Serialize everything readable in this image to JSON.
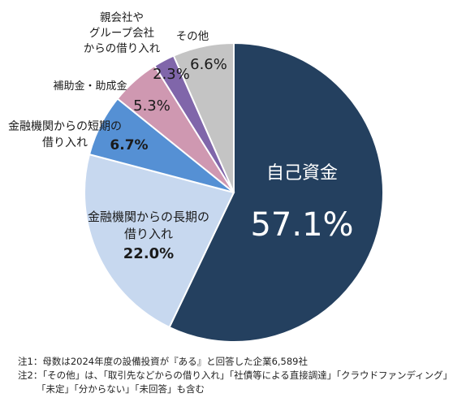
{
  "chart_data": {
    "type": "pie",
    "categories": [
      "自己資金",
      "金融機関からの長期の借り入れ",
      "金融機関からの短期の借り入れ",
      "補助金・助成金",
      "親会社やグループ会社からの借り入れ",
      "その他"
    ],
    "values": [
      57.1,
      22.0,
      6.7,
      5.3,
      2.3,
      6.6
    ],
    "value_labels": [
      "57.1%",
      "22.0%",
      "6.7%",
      "5.3%",
      "2.3%",
      "6.6%"
    ],
    "colors": [
      "#24405f",
      "#c7d8ef",
      "#5590d4",
      "#cf98b1",
      "#8066aa",
      "#c4c4c4"
    ],
    "label_lines": [
      [
        "自己資金"
      ],
      [
        "金融機関からの長期の",
        "借り入れ"
      ],
      [
        "金融機関からの短期の",
        "借り入れ"
      ],
      [
        "補助金・助成金"
      ],
      [
        "親会社や",
        "グループ会社",
        "からの借り入れ"
      ],
      [
        "その他"
      ]
    ]
  },
  "notes": [
    "注1：母数は2024年度の設備投資が『ある』と回答した企業6,589社",
    "注2：「その他」は、「取引先などからの借り入れ」「社債等による直接調達」「クラウドファンディング」",
    "「未定」「分からない」「未回答」も含む"
  ]
}
